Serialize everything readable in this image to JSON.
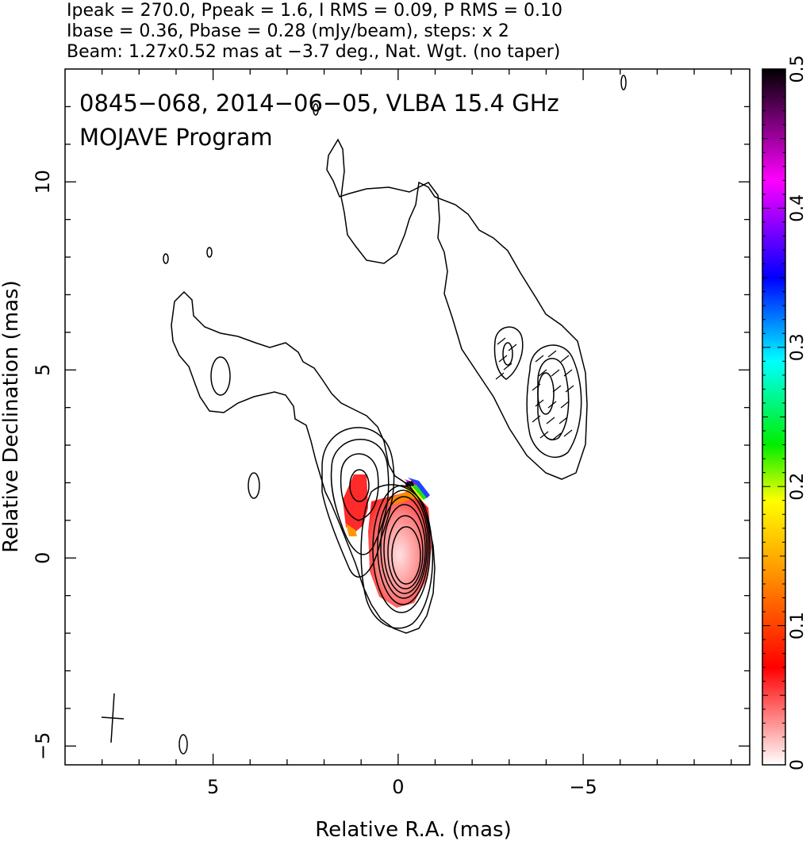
{
  "header": {
    "line1": "Ipeak = 270.0, Ppeak = 1.6, I RMS = 0.09, P RMS = 0.10",
    "line2": "Ibase = 0.36, Pbase = 0.28 (mJy/beam), steps: x 2",
    "line3": "Beam: 1.27x0.52 mas at −3.7 deg., Nat. Wgt. (no taper)"
  },
  "plot": {
    "title": "0845−068, 2014−06−05, VLBA 15.4 GHz",
    "subtitle": "MOJAVE Program"
  },
  "chart_data": {
    "type": "contour",
    "title": "0845−068, 2014−06−05, VLBA 15.4 GHz",
    "subtitle": "MOJAVE Program",
    "xlabel": "Relative R.A. (mas)",
    "ylabel": "Relative Declination (mas)",
    "xlim": [
      9.0,
      -9.5
    ],
    "ylim": [
      -5.5,
      13.0
    ],
    "x_ticks": [
      5,
      0,
      -5
    ],
    "x_tick_labels": [
      "5",
      "0",
      "−5"
    ],
    "y_ticks": [
      -5,
      0,
      5,
      10
    ],
    "y_tick_labels": [
      "−5",
      "0",
      "5",
      "10"
    ],
    "colorbar": {
      "range": [
        0,
        0.5
      ],
      "ticks": [
        0,
        0.1,
        0.2,
        0.3,
        0.4,
        0.5
      ],
      "tick_labels": [
        "0",
        "0.1",
        "0.2",
        "0.3",
        "0.4",
        "0.5"
      ],
      "colors": [
        "#ffffff",
        "#ff0000",
        "#ffff00",
        "#00ff00",
        "#00ffff",
        "#0000ff",
        "#ff00ff",
        "#000000"
      ]
    },
    "intensity_peak_mJy_per_beam": 270.0,
    "polarization_peak_mJy_per_beam": 1.6,
    "contour_base_mJy_per_beam": 0.36,
    "contour_step_factor": 2,
    "core": {
      "x": 0.0,
      "y": 0.1,
      "n_contours": 10
    },
    "inner_knot": {
      "x": 1.2,
      "y": 1.9
    },
    "outer_knot": {
      "x": -3.8,
      "y": 4.5
    },
    "small_knot": {
      "x": -2.7,
      "y": 5.4
    },
    "beam": {
      "major_mas": 1.27,
      "minor_mas": 0.52,
      "pa_deg": -3.7,
      "position": "bottom-left"
    },
    "polarization_regions": [
      {
        "x": 1.25,
        "y": 1.5,
        "value": 0.07
      },
      {
        "x": 0.0,
        "y": 0.5,
        "value": 0.06
      }
    ]
  },
  "axes": {
    "x_label": "Relative R.A. (mas)",
    "y_label": "Relative Declination (mas)"
  }
}
